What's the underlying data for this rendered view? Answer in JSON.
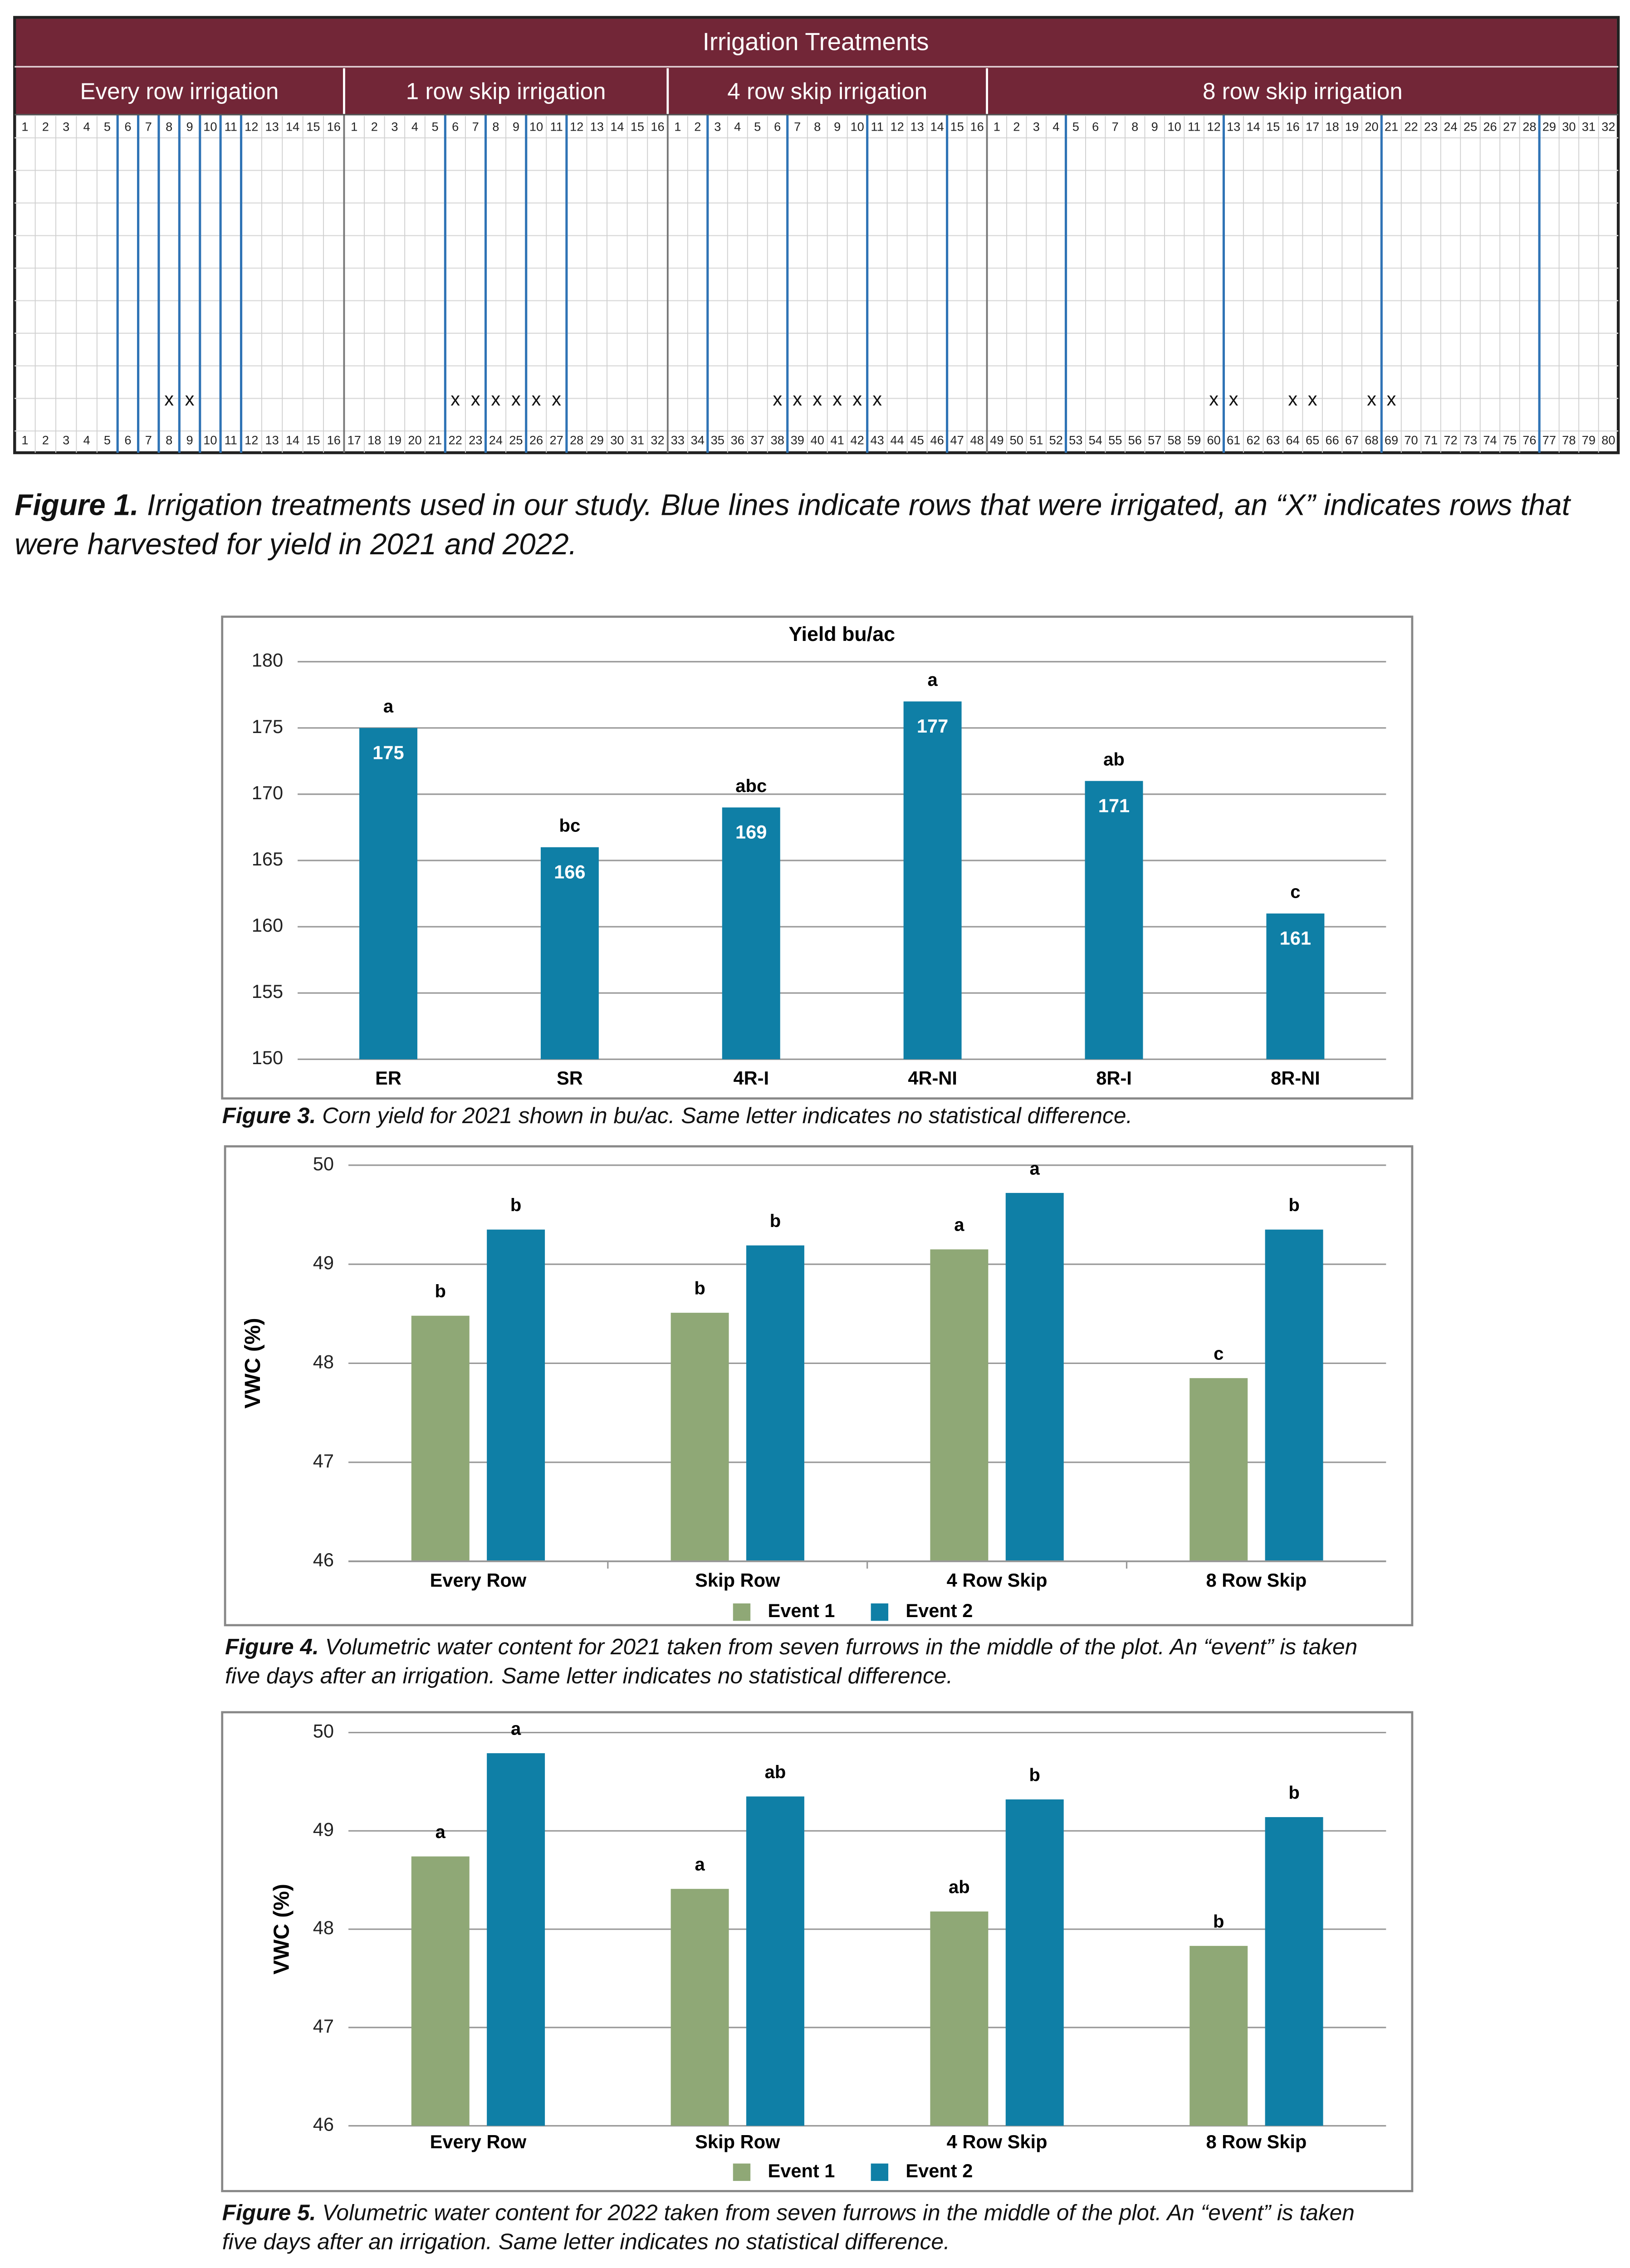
{
  "figure_1": {
    "title": "Irrigation Treatments",
    "harvest_mark": "x",
    "groups": [
      {
        "name": "Every row irrigation",
        "rows": [
          1,
          2,
          3,
          4,
          5,
          6,
          7,
          8,
          9,
          10,
          11,
          12,
          13,
          14,
          15,
          16
        ],
        "irrigated_furrows_after": [
          5,
          6,
          7,
          8,
          9,
          10,
          11
        ]
      },
      {
        "name": "1 row skip irrigation",
        "rows": [
          1,
          2,
          3,
          4,
          5,
          6,
          7,
          8,
          9,
          10,
          11,
          12,
          13,
          14,
          15,
          16
        ],
        "irrigated_furrows_after": [
          5,
          7,
          9,
          11
        ]
      },
      {
        "name": "4 row skip irrigation",
        "rows": [
          1,
          2,
          3,
          4,
          5,
          6,
          7,
          8,
          9,
          10,
          11,
          12,
          13,
          14,
          15,
          16
        ],
        "irrigated_furrows_after": [
          2,
          6,
          10,
          14
        ]
      },
      {
        "name": "8 row skip irrigation",
        "rows": [
          1,
          2,
          3,
          4,
          5,
          6,
          7,
          8,
          9,
          10,
          11,
          12,
          13,
          14,
          15,
          16,
          17,
          18,
          19,
          20,
          21,
          22,
          23,
          24,
          25,
          26,
          27,
          28,
          29,
          30,
          31,
          32
        ],
        "irrigated_furrows_after": [
          4,
          12,
          20,
          28
        ]
      }
    ],
    "plot_rows": [
      1,
      2,
      3,
      4,
      5,
      6,
      7,
      8,
      9,
      10,
      11,
      12,
      13,
      14,
      15,
      16,
      17,
      18,
      19,
      20,
      21,
      22,
      23,
      24,
      25,
      26,
      27,
      28,
      29,
      30,
      31,
      32,
      33,
      34,
      35,
      36,
      37,
      38,
      39,
      40,
      41,
      42,
      43,
      44,
      45,
      46,
      47,
      48,
      49,
      50,
      51,
      52,
      53,
      54,
      55,
      56,
      57,
      58,
      59,
      60,
      61,
      62,
      63,
      64,
      65,
      66,
      67,
      68,
      69,
      70,
      71,
      72,
      73,
      74,
      75,
      76,
      77,
      78,
      79,
      80
    ],
    "harvested_plot_rows": [
      8,
      9,
      22,
      23,
      24,
      25,
      26,
      27,
      38,
      39,
      40,
      41,
      42,
      43,
      60,
      61,
      64,
      65,
      68,
      69
    ],
    "caption_label": "Figure 1.",
    "caption": "Irrigation treatments used in our study. Blue lines indicate rows that were irrigated, an “X” indicates rows that were harvested for yield in 2021 and 2022."
  },
  "chart_data": [
    {
      "type": "bar",
      "title": "Yield bu/ac",
      "categories": [
        "ER",
        "SR",
        "4R-I",
        "4R-NI",
        "8R-I",
        "8R-NI"
      ],
      "values": [
        175,
        166,
        169,
        177,
        171,
        161
      ],
      "letters": [
        "a",
        "bc",
        "abc",
        "a",
        "ab",
        "c"
      ],
      "color": "#0f7fa6",
      "ylim": [
        150,
        180
      ],
      "yticks": [
        150,
        155,
        160,
        165,
        170,
        175,
        180
      ],
      "grid": true,
      "caption_label": "Figure 3.",
      "caption": "Corn yield for 2021 shown in bu/ac. Same letter indicates no statistical difference."
    },
    {
      "type": "bar",
      "y_label": "VWC (%)",
      "categories": [
        "Every Row",
        "Skip Row",
        "4 Row Skip",
        "8 Row Skip"
      ],
      "series": [
        {
          "name": "Event 1",
          "color": "#8fa876",
          "values": [
            48.48,
            48.51,
            49.15,
            47.85
          ],
          "letters": [
            "b",
            "b",
            "a",
            "c"
          ]
        },
        {
          "name": "Event 2",
          "color": "#0f7fa6",
          "values": [
            49.35,
            49.19,
            49.72,
            49.35
          ],
          "letters": [
            "b",
            "b",
            "a",
            "b"
          ]
        }
      ],
      "ylim": [
        46,
        50
      ],
      "yticks": [
        46,
        47,
        48,
        49,
        50
      ],
      "grid": true,
      "legend": "bottom",
      "caption_label": "Figure 4.",
      "caption": "Volumetric water content for 2021 taken from seven furrows in the middle of the plot. An “event” is taken five days after an irrigation. Same letter indicates no statistical difference."
    },
    {
      "type": "bar",
      "y_label": "VWC (%)",
      "categories": [
        "Every Row",
        "Skip Row",
        "4 Row Skip",
        "8 Row Skip"
      ],
      "series": [
        {
          "name": "Event 1",
          "color": "#8fa876",
          "values": [
            48.74,
            48.41,
            48.18,
            47.83
          ],
          "letters": [
            "a",
            "a",
            "ab",
            "b"
          ]
        },
        {
          "name": "Event 2",
          "color": "#0f7fa6",
          "values": [
            49.79,
            49.35,
            49.32,
            49.14
          ],
          "letters": [
            "a",
            "ab",
            "b",
            "b"
          ]
        }
      ],
      "ylim": [
        46,
        50
      ],
      "yticks": [
        46,
        47,
        48,
        49,
        50
      ],
      "grid": true,
      "legend": "bottom",
      "caption_label": "Figure 5.",
      "caption": "Volumetric water content for 2022 taken from seven furrows in the middle of the plot. An “event” is taken five days after an irrigation. Same letter indicates no statistical difference."
    }
  ]
}
